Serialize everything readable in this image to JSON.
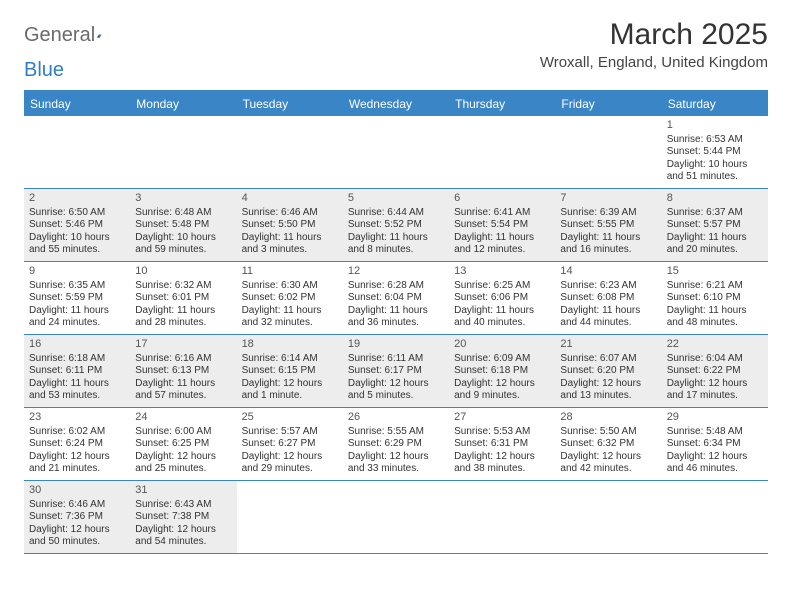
{
  "logo": {
    "general": "General",
    "blue": "Blue"
  },
  "title": "March 2025",
  "location": "Wroxall, England, United Kingdom",
  "colors": {
    "header_bg": "#3a85c6",
    "header_text": "#ffffff",
    "shade_bg": "#ededed",
    "border": "#3a85c6",
    "body_text": "#333333",
    "logo_gray": "#6a6a6a",
    "logo_blue": "#2f7fc1"
  },
  "day_names": [
    "Sunday",
    "Monday",
    "Tuesday",
    "Wednesday",
    "Thursday",
    "Friday",
    "Saturday"
  ],
  "weeks": [
    [
      {
        "empty": true
      },
      {
        "empty": true
      },
      {
        "empty": true
      },
      {
        "empty": true
      },
      {
        "empty": true
      },
      {
        "empty": true
      },
      {
        "num": "1",
        "shade": false,
        "sunrise": "Sunrise: 6:53 AM",
        "sunset": "Sunset: 5:44 PM",
        "daylight": "Daylight: 10 hours and 51 minutes."
      }
    ],
    [
      {
        "num": "2",
        "shade": true,
        "sunrise": "Sunrise: 6:50 AM",
        "sunset": "Sunset: 5:46 PM",
        "daylight": "Daylight: 10 hours and 55 minutes."
      },
      {
        "num": "3",
        "shade": true,
        "sunrise": "Sunrise: 6:48 AM",
        "sunset": "Sunset: 5:48 PM",
        "daylight": "Daylight: 10 hours and 59 minutes."
      },
      {
        "num": "4",
        "shade": true,
        "sunrise": "Sunrise: 6:46 AM",
        "sunset": "Sunset: 5:50 PM",
        "daylight": "Daylight: 11 hours and 3 minutes."
      },
      {
        "num": "5",
        "shade": true,
        "sunrise": "Sunrise: 6:44 AM",
        "sunset": "Sunset: 5:52 PM",
        "daylight": "Daylight: 11 hours and 8 minutes."
      },
      {
        "num": "6",
        "shade": true,
        "sunrise": "Sunrise: 6:41 AM",
        "sunset": "Sunset: 5:54 PM",
        "daylight": "Daylight: 11 hours and 12 minutes."
      },
      {
        "num": "7",
        "shade": true,
        "sunrise": "Sunrise: 6:39 AM",
        "sunset": "Sunset: 5:55 PM",
        "daylight": "Daylight: 11 hours and 16 minutes."
      },
      {
        "num": "8",
        "shade": true,
        "sunrise": "Sunrise: 6:37 AM",
        "sunset": "Sunset: 5:57 PM",
        "daylight": "Daylight: 11 hours and 20 minutes."
      }
    ],
    [
      {
        "num": "9",
        "shade": false,
        "sunrise": "Sunrise: 6:35 AM",
        "sunset": "Sunset: 5:59 PM",
        "daylight": "Daylight: 11 hours and 24 minutes."
      },
      {
        "num": "10",
        "shade": false,
        "sunrise": "Sunrise: 6:32 AM",
        "sunset": "Sunset: 6:01 PM",
        "daylight": "Daylight: 11 hours and 28 minutes."
      },
      {
        "num": "11",
        "shade": false,
        "sunrise": "Sunrise: 6:30 AM",
        "sunset": "Sunset: 6:02 PM",
        "daylight": "Daylight: 11 hours and 32 minutes."
      },
      {
        "num": "12",
        "shade": false,
        "sunrise": "Sunrise: 6:28 AM",
        "sunset": "Sunset: 6:04 PM",
        "daylight": "Daylight: 11 hours and 36 minutes."
      },
      {
        "num": "13",
        "shade": false,
        "sunrise": "Sunrise: 6:25 AM",
        "sunset": "Sunset: 6:06 PM",
        "daylight": "Daylight: 11 hours and 40 minutes."
      },
      {
        "num": "14",
        "shade": false,
        "sunrise": "Sunrise: 6:23 AM",
        "sunset": "Sunset: 6:08 PM",
        "daylight": "Daylight: 11 hours and 44 minutes."
      },
      {
        "num": "15",
        "shade": false,
        "sunrise": "Sunrise: 6:21 AM",
        "sunset": "Sunset: 6:10 PM",
        "daylight": "Daylight: 11 hours and 48 minutes."
      }
    ],
    [
      {
        "num": "16",
        "shade": true,
        "sunrise": "Sunrise: 6:18 AM",
        "sunset": "Sunset: 6:11 PM",
        "daylight": "Daylight: 11 hours and 53 minutes."
      },
      {
        "num": "17",
        "shade": true,
        "sunrise": "Sunrise: 6:16 AM",
        "sunset": "Sunset: 6:13 PM",
        "daylight": "Daylight: 11 hours and 57 minutes."
      },
      {
        "num": "18",
        "shade": true,
        "sunrise": "Sunrise: 6:14 AM",
        "sunset": "Sunset: 6:15 PM",
        "daylight": "Daylight: 12 hours and 1 minute."
      },
      {
        "num": "19",
        "shade": true,
        "sunrise": "Sunrise: 6:11 AM",
        "sunset": "Sunset: 6:17 PM",
        "daylight": "Daylight: 12 hours and 5 minutes."
      },
      {
        "num": "20",
        "shade": true,
        "sunrise": "Sunrise: 6:09 AM",
        "sunset": "Sunset: 6:18 PM",
        "daylight": "Daylight: 12 hours and 9 minutes."
      },
      {
        "num": "21",
        "shade": true,
        "sunrise": "Sunrise: 6:07 AM",
        "sunset": "Sunset: 6:20 PM",
        "daylight": "Daylight: 12 hours and 13 minutes."
      },
      {
        "num": "22",
        "shade": true,
        "sunrise": "Sunrise: 6:04 AM",
        "sunset": "Sunset: 6:22 PM",
        "daylight": "Daylight: 12 hours and 17 minutes."
      }
    ],
    [
      {
        "num": "23",
        "shade": false,
        "sunrise": "Sunrise: 6:02 AM",
        "sunset": "Sunset: 6:24 PM",
        "daylight": "Daylight: 12 hours and 21 minutes."
      },
      {
        "num": "24",
        "shade": false,
        "sunrise": "Sunrise: 6:00 AM",
        "sunset": "Sunset: 6:25 PM",
        "daylight": "Daylight: 12 hours and 25 minutes."
      },
      {
        "num": "25",
        "shade": false,
        "sunrise": "Sunrise: 5:57 AM",
        "sunset": "Sunset: 6:27 PM",
        "daylight": "Daylight: 12 hours and 29 minutes."
      },
      {
        "num": "26",
        "shade": false,
        "sunrise": "Sunrise: 5:55 AM",
        "sunset": "Sunset: 6:29 PM",
        "daylight": "Daylight: 12 hours and 33 minutes."
      },
      {
        "num": "27",
        "shade": false,
        "sunrise": "Sunrise: 5:53 AM",
        "sunset": "Sunset: 6:31 PM",
        "daylight": "Daylight: 12 hours and 38 minutes."
      },
      {
        "num": "28",
        "shade": false,
        "sunrise": "Sunrise: 5:50 AM",
        "sunset": "Sunset: 6:32 PM",
        "daylight": "Daylight: 12 hours and 42 minutes."
      },
      {
        "num": "29",
        "shade": false,
        "sunrise": "Sunrise: 5:48 AM",
        "sunset": "Sunset: 6:34 PM",
        "daylight": "Daylight: 12 hours and 46 minutes."
      }
    ],
    [
      {
        "num": "30",
        "shade": true,
        "sunrise": "Sunrise: 6:46 AM",
        "sunset": "Sunset: 7:36 PM",
        "daylight": "Daylight: 12 hours and 50 minutes."
      },
      {
        "num": "31",
        "shade": true,
        "sunrise": "Sunrise: 6:43 AM",
        "sunset": "Sunset: 7:38 PM",
        "daylight": "Daylight: 12 hours and 54 minutes."
      },
      {
        "empty": true
      },
      {
        "empty": true
      },
      {
        "empty": true
      },
      {
        "empty": true
      },
      {
        "empty": true
      }
    ]
  ]
}
